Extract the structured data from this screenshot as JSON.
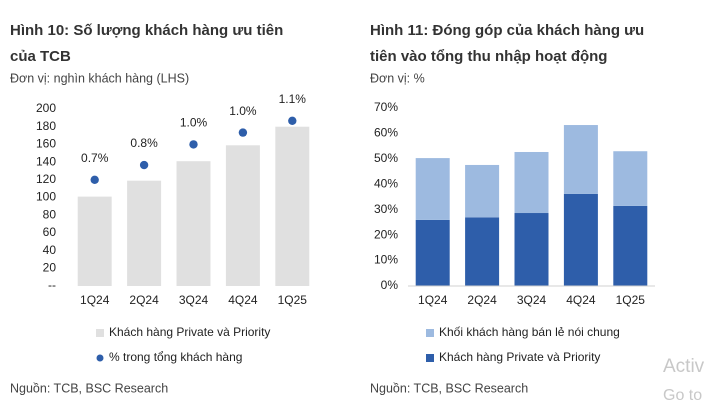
{
  "chart_data": [
    {
      "type": "bar_dot",
      "title": [
        "Hình 10:  Số lượng khách hàng ưu tiên",
        "của TCB"
      ],
      "subtitle": "Đơn vị: nghìn khách hàng (LHS)",
      "source": "Nguồn: TCB, BSC Research",
      "categories": [
        "1Q24",
        "2Q24",
        "3Q24",
        "4Q24",
        "1Q25"
      ],
      "ylim": [
        0,
        200
      ],
      "yticks": [
        {
          "value": 0,
          "label": "--"
        },
        20,
        40,
        60,
        80,
        100,
        120,
        140,
        160,
        180,
        200
      ],
      "y2lim": [
        0,
        1.2
      ],
      "series": [
        {
          "name": "Khách hàng Private và Priority",
          "color": "#e0e0e0",
          "values": [
            101,
            119,
            141,
            159,
            180
          ]
        },
        {
          "name": "% trong tổng khách hàng",
          "color": "#2e5eaa",
          "axis": "y2",
          "values": [
            0.72,
            0.82,
            0.96,
            1.04,
            1.12
          ],
          "value_labels": [
            "0.7%",
            "0.8%",
            "1.0%",
            "1.0%",
            "1.1%"
          ]
        }
      ]
    },
    {
      "type": "stacked_bar",
      "title": [
        "Hình 11:  Đóng góp của khách hàng ưu",
        "tiên vào tổng thu nhập hoạt động"
      ],
      "subtitle": "Đơn vị: %",
      "source": "Nguồn: TCB, BSC Research",
      "categories": [
        "1Q24",
        "2Q24",
        "3Q24",
        "4Q24",
        "1Q25"
      ],
      "ylim": [
        0,
        70
      ],
      "yticks": [
        {
          "value": 0,
          "label": "0%"
        },
        {
          "value": 10,
          "label": "10%"
        },
        {
          "value": 20,
          "label": "20%"
        },
        {
          "value": 30,
          "label": "30%"
        },
        {
          "value": 40,
          "label": "40%"
        },
        {
          "value": 50,
          "label": "50%"
        },
        {
          "value": 60,
          "label": "60%"
        },
        {
          "value": 70,
          "label": "70%"
        }
      ],
      "series": [
        {
          "name": "Khách hàng Private và Priority",
          "color": "#2e5eaa",
          "values": [
            26,
            27,
            28.7,
            36.2,
            31.5
          ]
        },
        {
          "name": "Khối khách hàng bán lẻ nói chung",
          "color": "#9dbae0",
          "values": [
            24.3,
            20.6,
            24,
            27.1,
            21.5
          ]
        }
      ]
    }
  ],
  "watermark": [
    "Activ",
    "Go to"
  ]
}
